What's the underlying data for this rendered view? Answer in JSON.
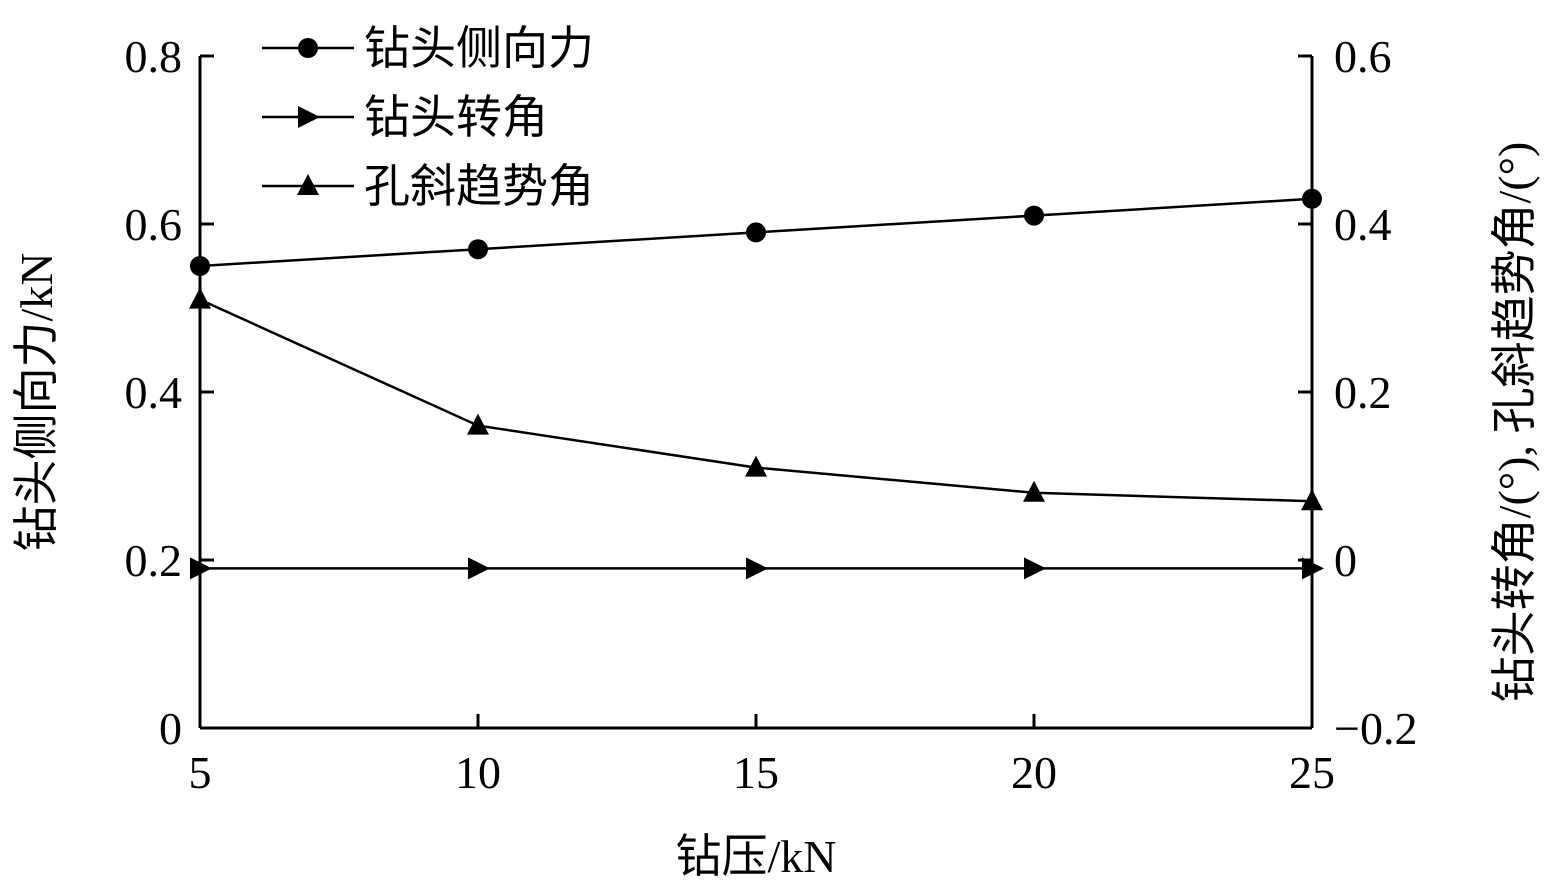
{
  "chart_data": {
    "type": "line",
    "xlabel": "钻压/kN",
    "ylabel_left": "钻头侧向力/kN",
    "ylabel_right": "钻头转角/(°), 孔斜趋势角/(°)",
    "x": [
      5,
      10,
      15,
      20,
      25
    ],
    "xlim": [
      5,
      25
    ],
    "xticks": [
      "5",
      "10",
      "15",
      "20",
      "25"
    ],
    "ylim_left": [
      0,
      0.8
    ],
    "yticks_left": [
      "0",
      "0.2",
      "0.4",
      "0.6",
      "0.8"
    ],
    "ylim_right": [
      -0.2,
      0.6
    ],
    "yticks_right": [
      "−0.2",
      "0",
      "0.2",
      "0.4",
      "0.6"
    ],
    "grid": false,
    "legend_position": "top-left",
    "series": [
      {
        "name": "钻头侧向力",
        "axis": "left",
        "marker": "circle",
        "values": [
          0.55,
          0.57,
          0.59,
          0.61,
          0.63
        ]
      },
      {
        "name": "钻头转角",
        "axis": "right",
        "marker": "triangle-right",
        "values": [
          -0.01,
          -0.01,
          -0.01,
          -0.01,
          -0.01
        ]
      },
      {
        "name": "孔斜趋势角",
        "axis": "right",
        "marker": "triangle-up",
        "values": [
          0.31,
          0.16,
          0.11,
          0.08,
          0.07
        ]
      }
    ]
  }
}
